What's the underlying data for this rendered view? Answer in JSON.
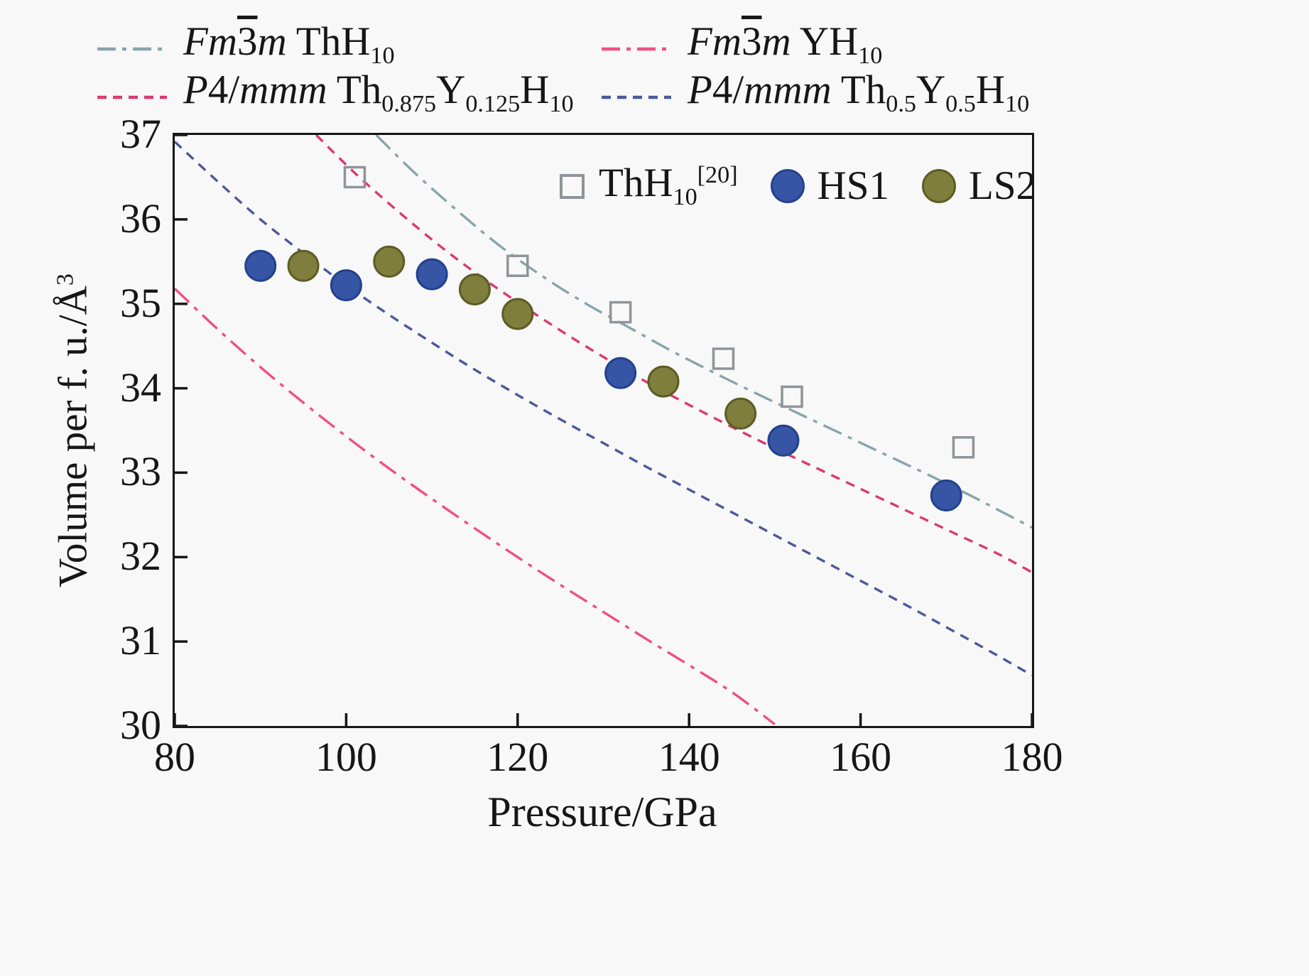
{
  "figure": {
    "background": "#f8f8f8",
    "axis_color": "#161616"
  },
  "chart_data": {
    "type": "line+scatter",
    "title": "",
    "xlabel": "Pressure/GPa",
    "ylabel": "Volume per f. u./Å³",
    "ylabel_parts": [
      {
        "s": "n",
        "t": "Volume per f. u./Å"
      },
      {
        "s": "sup",
        "t": "3"
      }
    ],
    "xlim": [
      80,
      180
    ],
    "ylim": [
      30,
      37
    ],
    "xticks": [
      80,
      100,
      120,
      140,
      160,
      180
    ],
    "yticks": [
      30,
      31,
      32,
      33,
      34,
      35,
      36,
      37
    ],
    "grid": false,
    "legend_positions": [
      "top-outside-two-columns",
      "inside-top-right-markers"
    ],
    "line_series": [
      {
        "id": "fm3m-thh10",
        "label": "Fm-3m ThH10",
        "label_parts": [
          {
            "s": "i",
            "t": "Fm"
          },
          {
            "s": "over",
            "t": "3"
          },
          {
            "s": "i",
            "t": "m"
          },
          {
            "s": "n",
            "t": " ThH"
          },
          {
            "s": "sub",
            "t": "10"
          }
        ],
        "color": "#87a5ab",
        "dash": "dashdot",
        "points": [
          [
            103.5,
            37.0
          ],
          [
            108,
            36.55
          ],
          [
            113,
            36.1
          ],
          [
            118,
            35.68
          ],
          [
            123,
            35.32
          ],
          [
            128,
            35.0
          ],
          [
            133,
            34.72
          ],
          [
            138,
            34.44
          ],
          [
            143,
            34.18
          ],
          [
            148,
            33.93
          ],
          [
            153,
            33.69
          ],
          [
            158,
            33.45
          ],
          [
            163,
            33.21
          ],
          [
            168,
            32.97
          ],
          [
            173,
            32.72
          ],
          [
            180,
            32.35
          ]
        ]
      },
      {
        "id": "fm3m-yh10",
        "label": "Fm-3m YH10",
        "label_parts": [
          {
            "s": "i",
            "t": "Fm"
          },
          {
            "s": "over",
            "t": "3"
          },
          {
            "s": "i",
            "t": "m"
          },
          {
            "s": "n",
            "t": " YH"
          },
          {
            "s": "sub",
            "t": "10"
          }
        ],
        "color": "#ef4f82",
        "dash": "dashdot",
        "points": [
          [
            80,
            35.18
          ],
          [
            85,
            34.7
          ],
          [
            90,
            34.25
          ],
          [
            95,
            33.83
          ],
          [
            100,
            33.43
          ],
          [
            105,
            33.05
          ],
          [
            110,
            32.69
          ],
          [
            115,
            32.34
          ],
          [
            120,
            32.0
          ],
          [
            125,
            31.67
          ],
          [
            130,
            31.35
          ],
          [
            135,
            31.03
          ],
          [
            140,
            30.72
          ],
          [
            145,
            30.4
          ],
          [
            150,
            30.02
          ]
        ]
      },
      {
        "id": "p4mmm-th0875y0125h10",
        "label": "P4/mmm Th0.875Y0.125H10",
        "label_parts": [
          {
            "s": "i",
            "t": "P"
          },
          {
            "s": "n",
            "t": "4/"
          },
          {
            "s": "i",
            "t": "mmm"
          },
          {
            "s": "n",
            "t": " Th"
          },
          {
            "s": "sub",
            "t": "0.875"
          },
          {
            "s": "n",
            "t": "Y"
          },
          {
            "s": "sub",
            "t": "0.125"
          },
          {
            "s": "n",
            "t": "H"
          },
          {
            "s": "sub",
            "t": "10"
          }
        ],
        "color": "#d93a6e",
        "dash": "dashed",
        "points": [
          [
            96.5,
            37.0
          ],
          [
            101,
            36.55
          ],
          [
            106,
            36.1
          ],
          [
            111,
            35.68
          ],
          [
            116,
            35.3
          ],
          [
            121,
            34.95
          ],
          [
            126,
            34.62
          ],
          [
            131,
            34.31
          ],
          [
            136,
            34.02
          ],
          [
            141,
            33.75
          ],
          [
            146,
            33.49
          ],
          [
            151,
            33.24
          ],
          [
            156,
            33.0
          ],
          [
            161,
            32.76
          ],
          [
            166,
            32.52
          ],
          [
            171,
            32.28
          ],
          [
            176,
            32.04
          ],
          [
            180,
            31.82
          ]
        ]
      },
      {
        "id": "p4mmm-th05y05h10",
        "label": "P4/mmm Th0.5Y0.5H10",
        "label_parts": [
          {
            "s": "i",
            "t": "P"
          },
          {
            "s": "n",
            "t": "4/"
          },
          {
            "s": "i",
            "t": "mmm"
          },
          {
            "s": "n",
            "t": " Th"
          },
          {
            "s": "sub",
            "t": "0.5"
          },
          {
            "s": "n",
            "t": "Y"
          },
          {
            "s": "sub",
            "t": "0.5"
          },
          {
            "s": "n",
            "t": "H"
          },
          {
            "s": "sub",
            "t": "10"
          }
        ],
        "color": "#4b589a",
        "dash": "dashed",
        "points": [
          [
            80,
            36.92
          ],
          [
            85,
            36.45
          ],
          [
            90,
            36.0
          ],
          [
            95,
            35.6
          ],
          [
            100,
            35.22
          ],
          [
            105,
            34.87
          ],
          [
            110,
            34.54
          ],
          [
            115,
            34.22
          ],
          [
            120,
            33.92
          ],
          [
            125,
            33.63
          ],
          [
            130,
            33.35
          ],
          [
            135,
            33.07
          ],
          [
            140,
            32.8
          ],
          [
            145,
            32.53
          ],
          [
            150,
            32.26
          ],
          [
            155,
            31.99
          ],
          [
            160,
            31.72
          ],
          [
            165,
            31.45
          ],
          [
            170,
            31.17
          ],
          [
            175,
            30.89
          ],
          [
            180,
            30.6
          ]
        ]
      }
    ],
    "scatter_series": [
      {
        "id": "thh10-ref20",
        "label": "ThH10 [20]",
        "label_parts": [
          {
            "s": "n",
            "t": "ThH"
          },
          {
            "s": "sub",
            "t": "10"
          },
          {
            "s": "sup",
            "t": "[20]"
          }
        ],
        "marker": "open-square",
        "fill": "none",
        "stroke": "#8f949a",
        "points": [
          [
            101,
            36.5
          ],
          [
            120,
            35.45
          ],
          [
            132,
            34.9
          ],
          [
            144,
            34.35
          ],
          [
            152,
            33.9
          ],
          [
            172,
            33.3
          ]
        ]
      },
      {
        "id": "hs1",
        "label": "HS1",
        "label_parts": [
          {
            "s": "n",
            "t": "HS1"
          }
        ],
        "marker": "circle",
        "fill": "#3655a5",
        "stroke": "#24418f",
        "points": [
          [
            90,
            35.45
          ],
          [
            100,
            35.22
          ],
          [
            110,
            35.35
          ],
          [
            132,
            34.18
          ],
          [
            151,
            33.38
          ],
          [
            170,
            32.73
          ]
        ]
      },
      {
        "id": "ls2",
        "label": "LS2",
        "label_parts": [
          {
            "s": "n",
            "t": "LS2"
          }
        ],
        "marker": "circle",
        "fill": "#7f7e3d",
        "stroke": "#5c5c25",
        "points": [
          [
            95,
            35.45
          ],
          [
            105,
            35.5
          ],
          [
            115,
            35.17
          ],
          [
            120,
            34.88
          ],
          [
            137,
            34.08
          ],
          [
            146,
            33.7
          ]
        ]
      }
    ]
  }
}
